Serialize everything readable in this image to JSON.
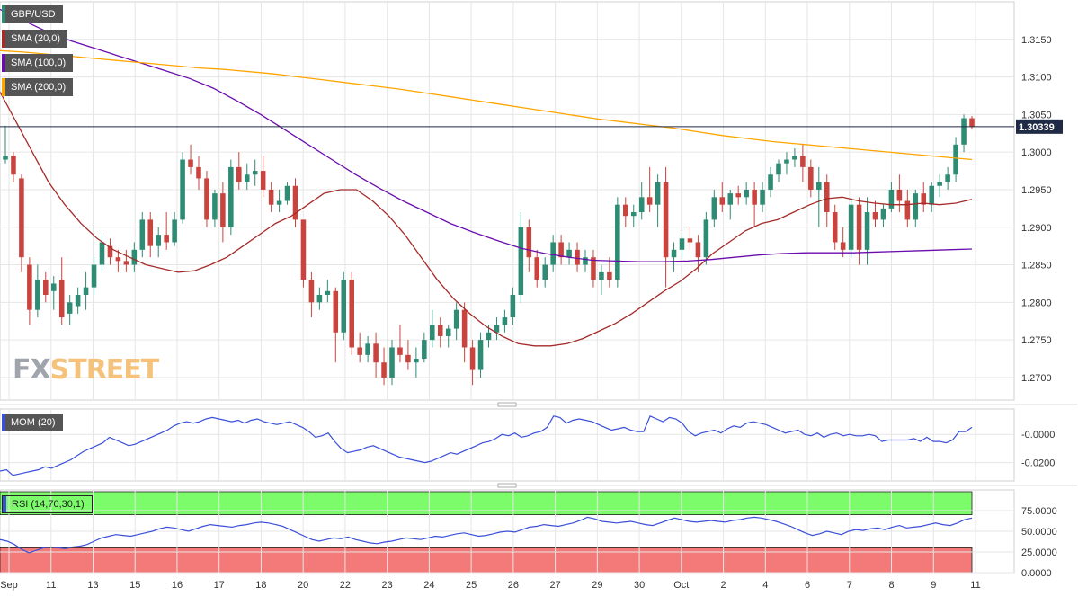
{
  "instrument": "GBP/USD",
  "indicators": {
    "sma20": {
      "label": "SMA (20,0)",
      "color": "#a52a2a"
    },
    "sma100": {
      "label": "SMA (100,0)",
      "color": "#6a0dad"
    },
    "sma200": {
      "label": "SMA (200,0)",
      "color": "#ffa500"
    },
    "mom": {
      "label": "MOM (20)",
      "color": "#3b4fd8"
    },
    "rsi": {
      "label": "RSI (14,70,30,1)",
      "color": "#3b4fd8"
    }
  },
  "logo": {
    "part1": "FX",
    "part2": "STREET"
  },
  "current_price": "1.30339",
  "colors": {
    "up": "#2e8b74",
    "down": "#c9443e",
    "ob_zone": "#7cfc6a",
    "os_zone": "#f47a7a",
    "axis_text": "#333333",
    "grid": "#e6e6e6"
  },
  "chart_data": {
    "type": "candlestick",
    "price_axis": {
      "ticks": [
        "1.3150",
        "1.3100",
        "1.3050",
        "1.3000",
        "1.2950",
        "1.2900",
        "1.2850",
        "1.2800",
        "1.2750",
        "1.2700"
      ],
      "ylim": [
        1.267,
        1.32
      ]
    },
    "date_labels": [
      "Sep",
      "11",
      "13",
      "15",
      "16",
      "17",
      "18",
      "20",
      "22",
      "23",
      "24",
      "25",
      "26",
      "27",
      "29",
      "30",
      "Oct",
      "2",
      "4",
      "6",
      "7",
      "8",
      "9",
      "11"
    ],
    "candles": [
      [
        1.299,
        1.3035,
        1.2985,
        1.2995
      ],
      [
        1.2995,
        1.3,
        1.296,
        1.297
      ],
      [
        1.2965,
        1.297,
        1.284,
        1.286
      ],
      [
        1.285,
        1.286,
        1.277,
        1.279
      ],
      [
        1.279,
        1.285,
        1.278,
        1.283
      ],
      [
        1.283,
        1.284,
        1.28,
        1.281
      ],
      [
        1.2815,
        1.2835,
        1.279,
        1.2825
      ],
      [
        1.283,
        1.286,
        1.277,
        1.278
      ],
      [
        1.2785,
        1.281,
        1.277,
        1.28
      ],
      [
        1.2795,
        1.282,
        1.2785,
        1.281
      ],
      [
        1.281,
        1.284,
        1.279,
        1.282
      ],
      [
        1.282,
        1.286,
        1.281,
        1.285
      ],
      [
        1.285,
        1.289,
        1.284,
        1.288
      ],
      [
        1.2875,
        1.2885,
        1.285,
        1.286
      ],
      [
        1.286,
        1.287,
        1.284,
        1.2855
      ],
      [
        1.2855,
        1.287,
        1.284,
        1.285
      ],
      [
        1.285,
        1.288,
        1.284,
        1.287
      ],
      [
        1.287,
        1.292,
        1.286,
        1.291
      ],
      [
        1.291,
        1.292,
        1.286,
        1.2875
      ],
      [
        1.2875,
        1.29,
        1.286,
        1.289
      ],
      [
        1.289,
        1.292,
        1.287,
        1.288
      ],
      [
        1.288,
        1.292,
        1.2875,
        1.291
      ],
      [
        1.291,
        1.3,
        1.2905,
        1.299
      ],
      [
        1.299,
        1.301,
        1.297,
        1.298
      ],
      [
        1.298,
        1.2995,
        1.295,
        1.2965
      ],
      [
        1.2965,
        1.2975,
        1.29,
        1.291
      ],
      [
        1.291,
        1.295,
        1.29,
        1.2945
      ],
      [
        1.2945,
        1.296,
        1.288,
        1.29
      ],
      [
        1.29,
        1.299,
        1.289,
        1.298
      ],
      [
        1.298,
        1.3,
        1.295,
        1.296
      ],
      [
        1.296,
        1.2985,
        1.295,
        1.297
      ],
      [
        1.297,
        1.299,
        1.2955,
        1.2975
      ],
      [
        1.2975,
        1.2995,
        1.294,
        1.295
      ],
      [
        1.295,
        1.296,
        1.292,
        1.293
      ],
      [
        1.293,
        1.295,
        1.292,
        1.2935
      ],
      [
        1.2935,
        1.296,
        1.293,
        1.2955
      ],
      [
        1.2955,
        1.2965,
        1.29,
        1.291
      ],
      [
        1.291,
        1.291,
        1.282,
        1.283
      ],
      [
        1.283,
        1.284,
        1.278,
        1.28
      ],
      [
        1.28,
        1.282,
        1.279,
        1.281
      ],
      [
        1.281,
        1.283,
        1.28,
        1.2815
      ],
      [
        1.2815,
        1.282,
        1.272,
        1.276
      ],
      [
        1.276,
        1.284,
        1.275,
        1.283
      ],
      [
        1.283,
        1.284,
        1.273,
        1.274
      ],
      [
        1.274,
        1.276,
        1.272,
        1.273
      ],
      [
        1.273,
        1.2755,
        1.272,
        1.2745
      ],
      [
        1.2745,
        1.276,
        1.27,
        1.272
      ],
      [
        1.272,
        1.274,
        1.269,
        1.27
      ],
      [
        1.27,
        1.275,
        1.269,
        1.274
      ],
      [
        1.274,
        1.277,
        1.272,
        1.273
      ],
      [
        1.273,
        1.275,
        1.271,
        1.272
      ],
      [
        1.272,
        1.274,
        1.27,
        1.2725
      ],
      [
        1.2725,
        1.276,
        1.272,
        1.275
      ],
      [
        1.275,
        1.279,
        1.274,
        1.277
      ],
      [
        1.277,
        1.278,
        1.274,
        1.2755
      ],
      [
        1.2755,
        1.277,
        1.274,
        1.2765
      ],
      [
        1.2765,
        1.28,
        1.275,
        1.279
      ],
      [
        1.279,
        1.28,
        1.272,
        1.274
      ],
      [
        1.274,
        1.275,
        1.269,
        1.271
      ],
      [
        1.271,
        1.276,
        1.27,
        1.275
      ],
      [
        1.275,
        1.277,
        1.274,
        1.276
      ],
      [
        1.276,
        1.278,
        1.275,
        1.277
      ],
      [
        1.277,
        1.279,
        1.276,
        1.278
      ],
      [
        1.278,
        1.282,
        1.277,
        1.281
      ],
      [
        1.281,
        1.292,
        1.28,
        1.29
      ],
      [
        1.29,
        1.291,
        1.284,
        1.286
      ],
      [
        1.286,
        1.287,
        1.282,
        1.283
      ],
      [
        1.283,
        1.286,
        1.282,
        1.285
      ],
      [
        1.285,
        1.289,
        1.284,
        1.288
      ],
      [
        1.288,
        1.289,
        1.285,
        1.286
      ],
      [
        1.286,
        1.288,
        1.285,
        1.287
      ],
      [
        1.287,
        1.288,
        1.284,
        1.285
      ],
      [
        1.285,
        1.287,
        1.284,
        1.286
      ],
      [
        1.286,
        1.287,
        1.282,
        1.283
      ],
      [
        1.283,
        1.285,
        1.281,
        1.284
      ],
      [
        1.284,
        1.286,
        1.282,
        1.283
      ],
      [
        1.283,
        1.294,
        1.282,
        1.293
      ],
      [
        1.293,
        1.294,
        1.29,
        1.2915
      ],
      [
        1.2915,
        1.293,
        1.29,
        1.292
      ],
      [
        1.292,
        1.296,
        1.291,
        1.294
      ],
      [
        1.294,
        1.298,
        1.292,
        1.293
      ],
      [
        1.293,
        1.297,
        1.29,
        1.296
      ],
      [
        1.296,
        1.298,
        1.282,
        1.286
      ],
      [
        1.286,
        1.288,
        1.284,
        1.287
      ],
      [
        1.287,
        1.289,
        1.286,
        1.2885
      ],
      [
        1.2885,
        1.29,
        1.287,
        1.288
      ],
      [
        1.288,
        1.289,
        1.284,
        1.286
      ],
      [
        1.286,
        1.292,
        1.285,
        1.291
      ],
      [
        1.291,
        1.295,
        1.29,
        1.294
      ],
      [
        1.294,
        1.296,
        1.292,
        1.293
      ],
      [
        1.293,
        1.295,
        1.291,
        1.2945
      ],
      [
        1.2945,
        1.2955,
        1.293,
        1.294
      ],
      [
        1.294,
        1.296,
        1.293,
        1.295
      ],
      [
        1.295,
        1.296,
        1.29,
        1.293
      ],
      [
        1.293,
        1.296,
        1.292,
        1.295
      ],
      [
        1.295,
        1.298,
        1.294,
        1.297
      ],
      [
        1.297,
        1.299,
        1.296,
        1.2985
      ],
      [
        1.2985,
        1.3,
        1.297,
        1.299
      ],
      [
        1.299,
        1.3005,
        1.298,
        1.2995
      ],
      [
        1.2995,
        1.301,
        1.296,
        1.298
      ],
      [
        1.298,
        1.299,
        1.294,
        1.295
      ],
      [
        1.295,
        1.298,
        1.29,
        1.296
      ],
      [
        1.296,
        1.297,
        1.29,
        1.292
      ],
      [
        1.292,
        1.293,
        1.287,
        1.288
      ],
      [
        1.288,
        1.29,
        1.286,
        1.287
      ],
      [
        1.287,
        1.294,
        1.286,
        1.293
      ],
      [
        1.293,
        1.294,
        1.285,
        1.287
      ],
      [
        1.287,
        1.294,
        1.285,
        1.292
      ],
      [
        1.292,
        1.2935,
        1.29,
        1.291
      ],
      [
        1.291,
        1.293,
        1.29,
        1.2925
      ],
      [
        1.2925,
        1.296,
        1.292,
        1.295
      ],
      [
        1.295,
        1.297,
        1.292,
        1.2935
      ],
      [
        1.2935,
        1.295,
        1.29,
        1.291
      ],
      [
        1.291,
        1.295,
        1.29,
        1.2945
      ],
      [
        1.2945,
        1.296,
        1.292,
        1.293
      ],
      [
        1.293,
        1.296,
        1.292,
        1.2955
      ],
      [
        1.2955,
        1.297,
        1.294,
        1.296
      ],
      [
        1.296,
        1.298,
        1.295,
        1.297
      ],
      [
        1.297,
        1.302,
        1.296,
        1.301
      ],
      [
        1.301,
        1.305,
        1.3,
        1.3045
      ],
      [
        1.3045,
        1.3048,
        1.303,
        1.3034
      ]
    ],
    "series": [
      {
        "name": "SMA (20,0)",
        "values": [
          1.308,
          1.304,
          1.3,
          1.296,
          1.293,
          1.2905,
          1.2885,
          1.287,
          1.286,
          1.285,
          1.2845,
          1.284,
          1.2842,
          1.285,
          1.286,
          1.2875,
          1.289,
          1.2905,
          1.2915,
          1.293,
          1.2945,
          1.295,
          1.295,
          1.2935,
          1.2915,
          1.289,
          1.286,
          1.283,
          1.2805,
          1.2785,
          1.2768,
          1.2755,
          1.2745,
          1.2742,
          1.2742,
          1.2745,
          1.2752,
          1.2762,
          1.2772,
          1.2785,
          1.28,
          1.2815,
          1.2828,
          1.2845,
          1.2865,
          1.288,
          1.2895,
          1.2905,
          1.291,
          1.292,
          1.293,
          1.2938,
          1.294,
          1.2935,
          1.2932,
          1.293,
          1.293,
          1.2932,
          1.293,
          1.2932,
          1.2937
        ]
      },
      {
        "name": "SMA (100,0)",
        "values": [
          1.319,
          1.3175,
          1.316,
          1.3148,
          1.3138,
          1.3128,
          1.3118,
          1.3108,
          1.3098,
          1.3085,
          1.3068,
          1.305,
          1.303,
          1.301,
          1.299,
          1.297,
          1.2952,
          1.2935,
          1.292,
          1.2905,
          1.2893,
          1.2882,
          1.2872,
          1.2865,
          1.286,
          1.2856,
          1.2855,
          1.2854,
          1.2854,
          1.2855,
          1.2857,
          1.286,
          1.2863,
          1.2865,
          1.2866,
          1.2866,
          1.2866,
          1.2867,
          1.2868,
          1.2869,
          1.287,
          1.2871
        ]
      },
      {
        "name": "SMA (200,0)",
        "values": [
          1.3135,
          1.3133,
          1.313,
          1.3127,
          1.3124,
          1.3121,
          1.3118,
          1.3115,
          1.3112,
          1.311,
          1.3107,
          1.3104,
          1.31,
          1.3096,
          1.3092,
          1.3088,
          1.3084,
          1.3079,
          1.3074,
          1.3069,
          1.3064,
          1.3059,
          1.3054,
          1.3049,
          1.3044,
          1.304,
          1.3036,
          1.3032,
          1.3027,
          1.3022,
          1.3018,
          1.3014,
          1.3011,
          1.3008,
          1.3005,
          1.3002,
          1.2999,
          1.2996,
          1.2993,
          1.299
        ]
      }
    ],
    "momentum": {
      "axis_ticks": [
        "-0.0000",
        "-0.0200"
      ],
      "ylim": [
        -0.033,
        0.018
      ],
      "values": [
        -0.026,
        -0.025,
        -0.029,
        -0.028,
        -0.027,
        -0.026,
        -0.025,
        -0.023,
        -0.024,
        -0.022,
        -0.02,
        -0.018,
        -0.015,
        -0.012,
        -0.01,
        -0.008,
        -0.006,
        -0.002,
        -0.004,
        -0.006,
        -0.008,
        -0.007,
        -0.005,
        -0.003,
        -0.001,
        0.001,
        0.003,
        0.006,
        0.008,
        0.009,
        0.008,
        0.009,
        0.011,
        0.012,
        0.011,
        0.01,
        0.009,
        0.01,
        0.008,
        0.01,
        0.011,
        0.009,
        0.008,
        0.007,
        0.008,
        0.009,
        0.007,
        0.005,
        0.002,
        -0.002,
        -0.001,
        0.001,
        -0.005,
        -0.01,
        -0.013,
        -0.012,
        -0.011,
        -0.009,
        -0.008,
        -0.01,
        -0.012,
        -0.014,
        -0.016,
        -0.017,
        -0.018,
        -0.019,
        -0.02,
        -0.019,
        -0.017,
        -0.015,
        -0.013,
        -0.014,
        -0.012,
        -0.01,
        -0.008,
        -0.006,
        -0.005,
        -0.003,
        0.0,
        -0.001,
        0.001,
        -0.002,
        -0.001,
        0.001,
        0.002,
        0.005,
        0.013,
        0.012,
        0.008,
        0.01,
        0.011,
        0.01,
        0.009,
        0.007,
        0.005,
        0.003,
        0.004,
        0.005,
        0.003,
        0.002,
        0.002,
        0.013,
        0.011,
        0.009,
        0.012,
        0.011,
        0.008,
        0.002,
        -0.001,
        0.001,
        0.002,
        0.003,
        0.001,
        0.004,
        0.006,
        0.005,
        0.008,
        0.009,
        0.008,
        0.007,
        0.005,
        0.003,
        0.001,
        0.002,
        0.003,
        0.0,
        -0.001,
        0.001,
        -0.002,
        0.0,
        0.001,
        -0.001,
        0.0,
        -0.001,
        -0.001,
        0.0,
        -0.001,
        -0.005,
        -0.004,
        -0.004,
        -0.004,
        -0.004,
        -0.003,
        -0.005,
        -0.002,
        -0.005,
        -0.005,
        -0.006,
        -0.004,
        0.002,
        0.002,
        0.005
      ]
    },
    "rsi": {
      "axis_ticks": [
        "75.0000",
        "50.0000",
        "25.0000",
        "0.0000"
      ],
      "ylim": [
        0,
        100
      ],
      "overbought": 70,
      "oversold": 30,
      "values": [
        40,
        38,
        34,
        28,
        24,
        27,
        30,
        31,
        30,
        29,
        31,
        32,
        34,
        38,
        42,
        44,
        46,
        45,
        44,
        46,
        48,
        50,
        53,
        55,
        54,
        52,
        50,
        53,
        56,
        58,
        57,
        56,
        55,
        57,
        58,
        60,
        61,
        60,
        58,
        56,
        52,
        48,
        44,
        40,
        38,
        40,
        42,
        41,
        43,
        40,
        38,
        36,
        35,
        37,
        38,
        40,
        42,
        41,
        40,
        42,
        44,
        43,
        45,
        47,
        48,
        46,
        44,
        45,
        47,
        49,
        50,
        49,
        52,
        55,
        56,
        58,
        57,
        56,
        58,
        60,
        63,
        67,
        65,
        62,
        61,
        60,
        61,
        62,
        60,
        58,
        57,
        60,
        63,
        66,
        64,
        62,
        61,
        62,
        63,
        62,
        61,
        63,
        64,
        66,
        67,
        66,
        64,
        62,
        59,
        56,
        52,
        48,
        45,
        47,
        50,
        48,
        46,
        50,
        52,
        51,
        53,
        54,
        52,
        55,
        57,
        54,
        55,
        56,
        58,
        60,
        58,
        57,
        60,
        64,
        66
      ]
    }
  }
}
